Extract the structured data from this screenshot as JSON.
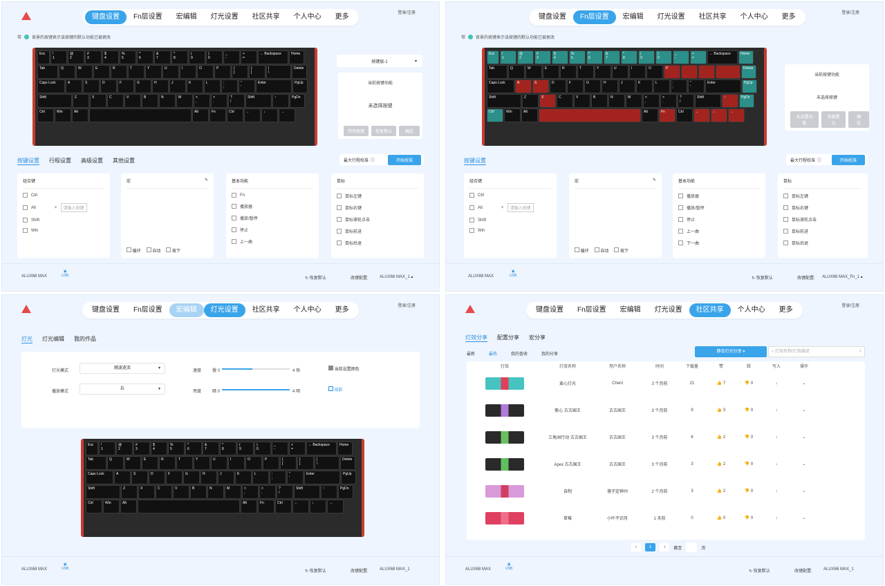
{
  "login_text": "登录/注册",
  "nav": [
    "键盘设置",
    "Fn层设置",
    "宏编辑",
    "灯光设置",
    "社区共享",
    "个人中心",
    "更多"
  ],
  "hint": "背景的按键表示该按键的默认功能已被更改",
  "keys": {
    "r1": [
      "Esc",
      "!\n1",
      "@\n2",
      "#\n3",
      "$\n4",
      "%\n5",
      "^\n6",
      "&\n7",
      "*\n8",
      "(\n9",
      ")\n0",
      "_\n-",
      "+\n=",
      "← Backspace",
      "Home"
    ],
    "r2": [
      "Tab",
      "Q",
      "W",
      "E",
      "R",
      "T",
      "Y",
      "U",
      "I",
      "O",
      "P",
      "{\n[",
      "}\n]",
      "|\n\\",
      "Delete"
    ],
    "r3": [
      "Caps Lock",
      "A",
      "S",
      "D",
      "F",
      "G",
      "H",
      "J",
      "K",
      "L",
      ":\n;",
      "\"\n'",
      "Enter",
      "PgUp"
    ],
    "r4": [
      "Shift",
      "Z",
      "X",
      "C",
      "V",
      "B",
      "N",
      "M",
      "<\n,",
      ">\n.",
      "?\n/",
      "Shift",
      "↑",
      "PgDn"
    ],
    "r5": [
      "Ctrl",
      "Win",
      "Alt",
      "",
      "Alt",
      "Fn",
      "Ctrl",
      "←",
      "↓",
      "→"
    ]
  },
  "keys_fn": {
    "r1": [
      "Esc",
      "!\n1",
      "@\n2",
      "#\n3",
      "$\n4",
      "%\n5",
      "^\n6",
      "&\n7",
      "*\n8",
      "(\n9",
      ")\n0",
      "_\n-",
      "+\n=",
      "← Backspace",
      "Home"
    ],
    "r2": [
      "Tab",
      "Q",
      "W",
      "E",
      "R",
      "T",
      "Y",
      "U",
      "I",
      "O",
      "P",
      "",
      "",
      "",
      "Delete"
    ],
    "r3": [
      "Caps Lock",
      "A",
      "S",
      "D",
      "F",
      "G",
      "H",
      "J",
      "K",
      "L",
      ":\n;",
      "\"\n'",
      "Enter",
      "PgUp"
    ],
    "r4": [
      "Shift",
      "Z",
      "X",
      "C",
      "V",
      "B",
      "N",
      "M",
      "<\n,",
      ">\n.",
      "?\n/",
      "Shift",
      "↑",
      "PgDn"
    ],
    "r5": [
      "Ctrl",
      "Win",
      "Alt",
      "",
      "Alt",
      "Fn",
      "Ctrl",
      "←",
      "↓",
      "→"
    ]
  },
  "q1": {
    "layer_select": "按键层-1",
    "current_func_title": "当前按键功能",
    "not_selected": "未选择按键",
    "btn_disable": "禁用按键",
    "btn_reset": "恢复默认",
    "btn_ok": "确定",
    "tabs": [
      "按键设置",
      "行程设置",
      "高级设置",
      "其他设置"
    ],
    "stroke_label": "最大行程校准",
    "calib_btn": "开始校准",
    "combo_title": "组合键",
    "combo_items": [
      "Ctrl",
      "Alt",
      "Shift",
      "Win"
    ],
    "combo_placeholder": "请输入按键",
    "macro_title": "宏",
    "macro_opts": [
      "循环",
      "自动",
      "按下"
    ],
    "basic_title": "基本功能",
    "basic_items": [
      "Fn",
      "播放器",
      "播放/暂停",
      "停止",
      "上一曲"
    ],
    "mouse_title": "鼠标",
    "mouse_items": [
      "鼠标左键",
      "鼠标右键",
      "鼠标滚轮点击",
      "鼠标前进",
      "鼠标后退"
    ],
    "device": "ALUX68 MAX",
    "usb": "USB",
    "restore": "恢复默认",
    "config_label": "改键配置:",
    "config": "ALUX68 MAX_1"
  },
  "q2": {
    "current_func_title": "当前按键功能",
    "not_selected": "未选择按键",
    "btn_unset": "未设置功能",
    "btn_reset": "恢复默认",
    "btn_ok": "确定",
    "tab": "按键设置",
    "stroke_label": "最大行程校准",
    "calib_btn": "开始校准",
    "combo_title": "组合键",
    "combo_items": [
      "Ctrl",
      "Alt",
      "Shift",
      "Win"
    ],
    "combo_placeholder": "请输入按键",
    "macro_title": "宏",
    "macro_opts": [
      "循环",
      "自动",
      "按下"
    ],
    "basic_title": "基本功能",
    "basic_items": [
      "播放器",
      "播放/暂停",
      "停止",
      "上一曲",
      "下一曲"
    ],
    "mouse_title": "鼠标",
    "mouse_items": [
      "鼠标左键",
      "鼠标右键",
      "鼠标滚轮点击",
      "鼠标前进",
      "鼠标后退"
    ],
    "device": "ALUX68 MAX",
    "usb": "USB",
    "restore": "恢复默认",
    "config_label": "改键配置:",
    "config": "ALUX68 MAX_Fn_1"
  },
  "q3": {
    "tabs": [
      "灯光",
      "灯光编辑",
      "我的作品"
    ],
    "mode_label": "灯光模式",
    "mode_value": "随波逐流",
    "dir_label": "播放模式",
    "dir_value": "右",
    "speed_label": "速度",
    "speed_min": "慢 0",
    "speed_max": "4 快",
    "speed_level": 0.45,
    "bright_label": "亮度",
    "bright_min": "暗 0",
    "bright_max": "4 明",
    "bright_level": 1.0,
    "use_color": "当前设置颜色",
    "colorful": "炫彩",
    "device": "ALUX68 MAX",
    "usb": "USB",
    "restore": "恢复默认",
    "config_label": "改键配置:",
    "config": "ALUX68 MAX_1"
  },
  "q4": {
    "tabs": [
      "灯效分享",
      "配置分享",
      "宏分享"
    ],
    "subtabs": [
      "最新",
      "最热",
      "我的查收",
      "我的分享"
    ],
    "filter": "静态灯光分享",
    "search_placeholder": "灯效名称/灯效描述",
    "columns": [
      "灯效",
      "灯效名称",
      "用户名称",
      "时间",
      "下载量",
      "赞",
      "踩",
      "写入",
      "操作"
    ],
    "rows": [
      {
        "name": "爱心灯光",
        "user": "Chenl",
        "time": "3 个月前",
        "downloads": "21",
        "likes": "7",
        "dislikes": "0"
      },
      {
        "name": "紫心 古古国王",
        "user": "古古国王",
        "time": "3 个月前",
        "downloads": "9",
        "likes": "3",
        "dislikes": "0"
      },
      {
        "name": "三角洲行动 古古国王",
        "user": "古古国王",
        "time": "3 个月前",
        "downloads": "6",
        "likes": "2",
        "dislikes": "0"
      },
      {
        "name": "Apex 古古国王",
        "user": "古古国王",
        "time": "3 个月前",
        "downloads": "3",
        "likes": "2",
        "dislikes": "0"
      },
      {
        "name": "自制",
        "user": "落子定神州",
        "time": "2 个月前",
        "downloads": "3",
        "likes": "2",
        "dislikes": "0"
      },
      {
        "name": "草莓",
        "user": "小叶不识月",
        "time": "1 天前",
        "downloads": "0",
        "likes": "0",
        "dislikes": "0"
      }
    ],
    "page": "1",
    "jump": "跳至",
    "page_unit": "页",
    "device": "ALUX68 MAX",
    "usb": "USB",
    "restore": "恢复默认",
    "config_label": "改键配置:",
    "config": "ALUX68 MAX_1"
  }
}
